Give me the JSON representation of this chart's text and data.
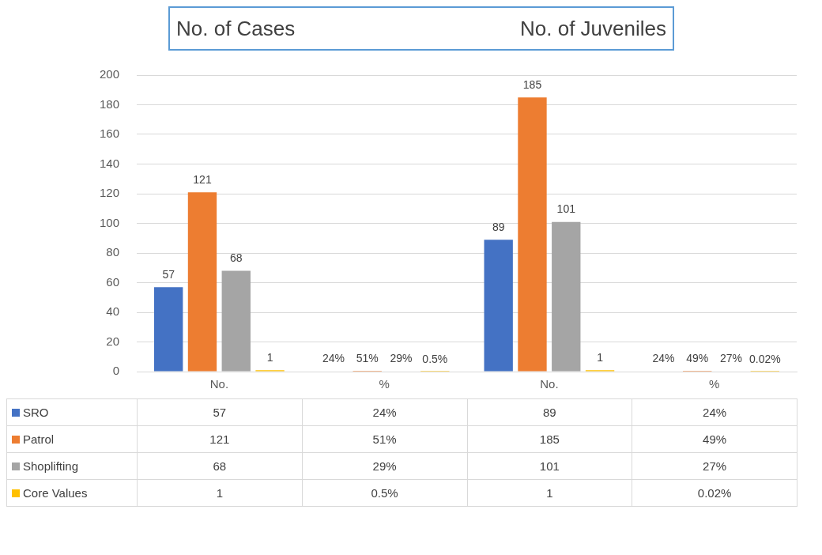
{
  "chart_data": {
    "type": "bar",
    "annotations": [
      "No. of Cases",
      "No. of Juveniles"
    ],
    "categories": [
      "No.",
      "%",
      "No.",
      "%"
    ],
    "series": [
      {
        "name": "SRO",
        "color": "#4472c4",
        "values": [
          57,
          0.24,
          89,
          0.24
        ],
        "value_labels": [
          "57",
          "24%",
          "89",
          "24%"
        ]
      },
      {
        "name": "Patrol",
        "color": "#ed7d31",
        "values": [
          121,
          0.51,
          185,
          0.49
        ],
        "value_labels": [
          "121",
          "51%",
          "185",
          "49%"
        ]
      },
      {
        "name": "Shoplifting",
        "color": "#a5a5a5",
        "values": [
          68,
          0.29,
          101,
          0.27
        ],
        "value_labels": [
          "68",
          "29%",
          "101",
          "27%"
        ]
      },
      {
        "name": "Core Values",
        "color": "#ffc000",
        "values": [
          1,
          0.005,
          1,
          0.0002
        ],
        "value_labels": [
          "1",
          "0.5%",
          "1",
          "0.02%"
        ]
      }
    ],
    "ylim": [
      0,
      200
    ],
    "yticks": [
      0,
      20,
      40,
      60,
      80,
      100,
      120,
      140,
      160,
      180,
      200
    ],
    "grid": "y",
    "legend": "bottom"
  }
}
